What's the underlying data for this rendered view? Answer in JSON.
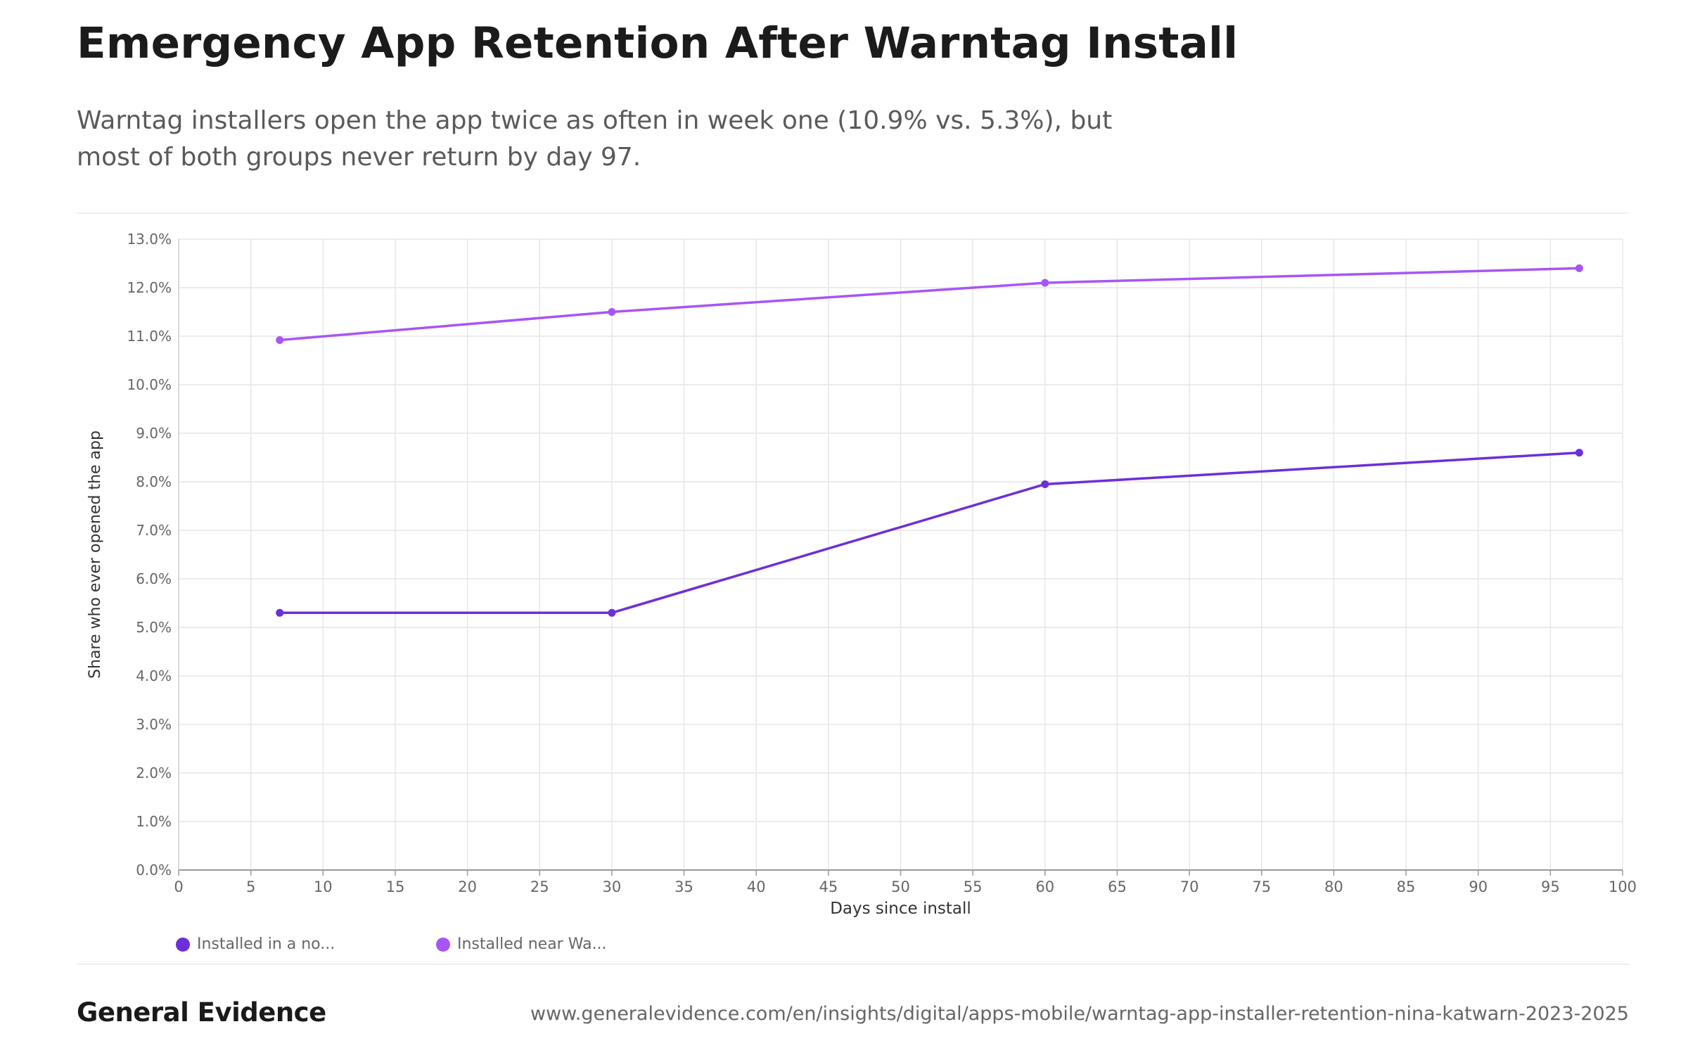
{
  "header": {
    "title": "Emergency App Retention After Warntag Install",
    "subtitle": "Warntag installers open the app twice as often in week one (10.9% vs. 5.3%), but most of both groups never return by day 97."
  },
  "footer": {
    "brand": "General Evidence",
    "source": "www.generalevidence.com/en/insights/digital/apps-mobile/warntag-app-installer-retention-nina-katwarn-2023-2025"
  },
  "legend": {
    "items": [
      {
        "label": "Installed in a no...",
        "color": "#6d2fd8"
      },
      {
        "label": "Installed near Wa...",
        "color": "#a855f7"
      }
    ]
  },
  "chart_data": {
    "type": "line",
    "xlabel": "Days since install",
    "ylabel": "Share who ever opened the app",
    "xlim": [
      0,
      100
    ],
    "ylim": [
      0,
      13
    ],
    "xticks": [
      0,
      5,
      10,
      15,
      20,
      25,
      30,
      35,
      40,
      45,
      50,
      55,
      60,
      65,
      70,
      75,
      80,
      85,
      90,
      95,
      100
    ],
    "yticks": [
      0,
      1,
      2,
      3,
      4,
      5,
      6,
      7,
      8,
      9,
      10,
      11,
      12,
      13
    ],
    "ytick_labels": [
      "0.0%",
      "1.0%",
      "2.0%",
      "3.0%",
      "4.0%",
      "5.0%",
      "6.0%",
      "7.0%",
      "8.0%",
      "9.0%",
      "10.0%",
      "11.0%",
      "12.0%",
      "13.0%"
    ],
    "grid": true,
    "legend_position": "bottom-left",
    "series": [
      {
        "name": "Installed in a no...",
        "color": "#6d2fd8",
        "x": [
          7,
          30,
          60,
          97
        ],
        "y": [
          5.3,
          5.3,
          7.95,
          8.6
        ]
      },
      {
        "name": "Installed near Wa...",
        "color": "#a855f7",
        "x": [
          7,
          30,
          60,
          97
        ],
        "y": [
          10.92,
          11.5,
          12.1,
          12.4
        ]
      }
    ]
  }
}
